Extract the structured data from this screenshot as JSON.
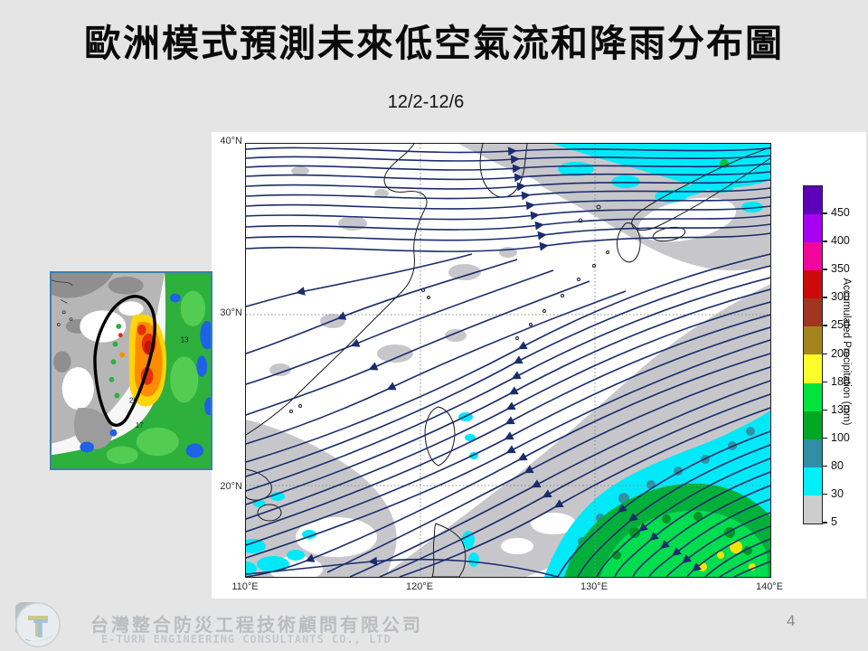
{
  "slide": {
    "title": "歐洲模式預測未來低空氣流和降雨分布圖",
    "date_range": "12/2-12/6",
    "page_number": "4"
  },
  "footer": {
    "company_zh": "台灣整合防災工程技術顧問有限公司",
    "company_en": "E-TURN ENGINEERING CONSULTANTS CO., LTD",
    "logo_name": "e-turn-logo"
  },
  "map": {
    "kind": "streamline-and-precipitation-map",
    "lat_labels": [
      "40°N",
      "30°N",
      "20°N"
    ],
    "lon_labels": [
      "110°E",
      "120°E",
      "130°E",
      "140°E"
    ],
    "streamline_color": "#1b2c6b",
    "precip_palette": {
      "light_rain_gray": "#c7c7cb",
      "cyan": "#00e9f9",
      "teal": "#2e93a7",
      "green": "#00b03a",
      "bright_green": "#00dd4e",
      "yellow": "#f2e400"
    }
  },
  "colorbar": {
    "title": "Accumulated Precipitation (mm)",
    "ticks_top_to_bottom": [
      "450",
      "400",
      "350",
      "300",
      "250",
      "200",
      "180",
      "130",
      "100",
      "80",
      "30",
      "5"
    ],
    "colors_top_to_bottom": [
      "#5e00b9",
      "#a800f0",
      "#f2059b",
      "#cc0a0a",
      "#a03522",
      "#a5831c",
      "#fcfc28",
      "#00e33c",
      "#00a822",
      "#2e8fa6",
      "#00f0fa",
      "#cdcdcd"
    ]
  },
  "inset": {
    "description": "Taiwan rainfall inset map",
    "annotations": [
      "13",
      "20",
      "17"
    ]
  }
}
